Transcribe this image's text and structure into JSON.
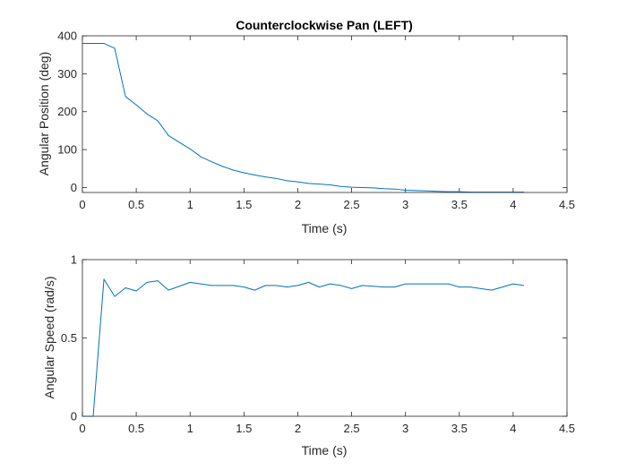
{
  "chart_data": [
    {
      "type": "line",
      "title": "Counterclockwise Pan (LEFT)",
      "xlabel": "Time (s)",
      "ylabel": "Angular Position (deg)",
      "xlim": [
        0,
        4.5
      ],
      "ylim": [
        -13,
        400
      ],
      "xticks": [
        "0",
        "0.5",
        "1",
        "1.5",
        "2",
        "2.5",
        "3",
        "3.5",
        "4",
        "4.5"
      ],
      "yticks": [
        "0",
        "100",
        "200",
        "300",
        "400"
      ],
      "grid": false,
      "color": "#0072BD",
      "series": [
        {
          "x": [
            0,
            0.1,
            0.2,
            0.3,
            0.4,
            0.5,
            0.6,
            0.7,
            0.8,
            0.9,
            1.0,
            1.1,
            1.2,
            1.3,
            1.4,
            1.5,
            1.6,
            1.7,
            1.8,
            1.9,
            2.0,
            2.1,
            2.2,
            2.3,
            2.4,
            2.5,
            2.6,
            2.7,
            2.8,
            2.9,
            3.0,
            3.1,
            3.2,
            3.3,
            3.4,
            3.5,
            3.6,
            3.7,
            3.8,
            3.9,
            4.0,
            4.1
          ],
          "values": [
            380,
            380,
            380,
            367,
            240,
            218,
            194,
            176,
            137,
            119,
            102,
            81,
            68,
            56,
            46,
            39,
            33,
            28,
            24,
            18,
            15,
            11,
            9,
            7,
            3,
            1,
            0,
            -1,
            -3,
            -4,
            -7,
            -8,
            -9,
            -10,
            -11,
            -11,
            -12,
            -12,
            -12,
            -12,
            -12,
            -12
          ]
        }
      ]
    },
    {
      "type": "line",
      "title": "",
      "xlabel": "Time (s)",
      "ylabel": "Angular Speed (rad/s)",
      "xlim": [
        0,
        4.5
      ],
      "ylim": [
        0,
        1
      ],
      "xticks": [
        "0",
        "0.5",
        "1",
        "1.5",
        "2",
        "2.5",
        "3",
        "3.5",
        "4",
        "4.5"
      ],
      "yticks": [
        "0",
        "0.5",
        "1"
      ],
      "grid": false,
      "color": "#0072BD",
      "series": [
        {
          "x": [
            0,
            0.1,
            0.2,
            0.3,
            0.4,
            0.5,
            0.6,
            0.7,
            0.8,
            0.9,
            1.0,
            1.1,
            1.2,
            1.3,
            1.4,
            1.5,
            1.6,
            1.7,
            1.8,
            1.9,
            2.0,
            2.1,
            2.2,
            2.3,
            2.4,
            2.5,
            2.6,
            2.7,
            2.8,
            2.9,
            3.0,
            3.1,
            3.2,
            3.3,
            3.4,
            3.5,
            3.6,
            3.7,
            3.8,
            3.9,
            4.0,
            4.1
          ],
          "values": [
            0,
            0,
            0.875,
            0.765,
            0.82,
            0.8,
            0.855,
            0.865,
            0.805,
            0.83,
            0.855,
            0.845,
            0.835,
            0.835,
            0.835,
            0.825,
            0.805,
            0.835,
            0.835,
            0.825,
            0.835,
            0.855,
            0.825,
            0.845,
            0.835,
            0.815,
            0.835,
            0.83,
            0.825,
            0.825,
            0.845,
            0.845,
            0.845,
            0.845,
            0.845,
            0.825,
            0.825,
            0.815,
            0.805,
            0.825,
            0.845,
            0.835
          ]
        }
      ]
    }
  ]
}
